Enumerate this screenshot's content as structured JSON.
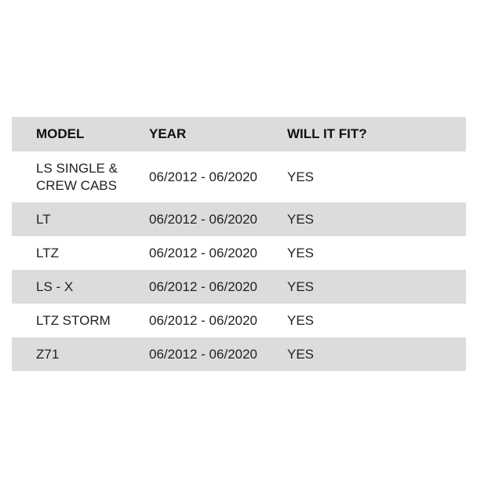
{
  "table": {
    "headers": [
      "MODEL",
      "YEAR",
      "WILL IT FIT?"
    ],
    "rows": [
      [
        "LS SINGLE & CREW CABS",
        "06/2012 - 06/2020",
        "YES"
      ],
      [
        "LT",
        "06/2012 - 06/2020",
        "YES"
      ],
      [
        "LTZ",
        "06/2012 - 06/2020",
        "YES"
      ],
      [
        "LS - X",
        "06/2012 - 06/2020",
        "YES"
      ],
      [
        "LTZ STORM",
        "06/2012 - 06/2020",
        "YES"
      ],
      [
        "Z71",
        "06/2012 - 06/2020",
        "YES"
      ]
    ]
  },
  "colors": {
    "header_bg": "#dcdcdc",
    "stripe_bg": "#dcdcdc"
  }
}
